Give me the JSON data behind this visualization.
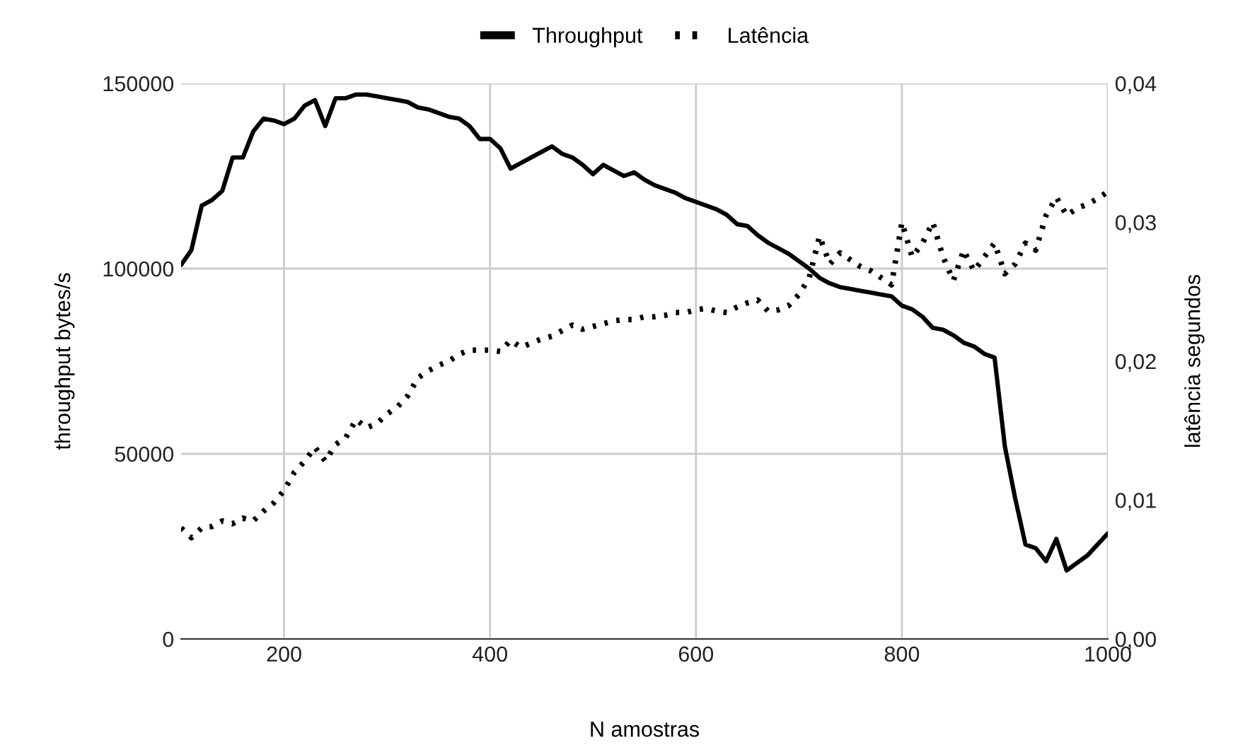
{
  "chart_data": {
    "type": "line",
    "xlabel": "N amostras",
    "ylabel": "throughput bytes/s",
    "y2label": "latência segundos",
    "x": [
      100,
      110,
      120,
      130,
      140,
      150,
      160,
      170,
      180,
      190,
      200,
      210,
      220,
      230,
      240,
      250,
      260,
      270,
      280,
      290,
      300,
      310,
      320,
      330,
      340,
      350,
      360,
      370,
      380,
      390,
      400,
      410,
      420,
      430,
      440,
      450,
      460,
      470,
      480,
      490,
      500,
      510,
      520,
      530,
      540,
      550,
      560,
      570,
      580,
      590,
      600,
      610,
      620,
      630,
      640,
      650,
      660,
      670,
      680,
      690,
      700,
      710,
      720,
      730,
      740,
      750,
      760,
      770,
      780,
      790,
      800,
      810,
      820,
      830,
      840,
      850,
      860,
      870,
      880,
      890,
      900,
      910,
      920,
      930,
      940,
      950,
      960,
      970,
      980,
      990,
      1000
    ],
    "series": [
      {
        "name": "Throughput",
        "color": "#000000",
        "line_style": "solid",
        "values": [
          101000,
          105000,
          117000,
          118500,
          121000,
          130000,
          130000,
          137000,
          140500,
          140000,
          139000,
          140500,
          144000,
          145500,
          138500,
          146000,
          146000,
          147000,
          147000,
          146500,
          146000,
          145500,
          145000,
          143500,
          143000,
          142000,
          141000,
          140500,
          138500,
          135000,
          135000,
          132500,
          127000,
          128500,
          130000,
          131500,
          133000,
          131000,
          130000,
          128000,
          125500,
          128000,
          126500,
          125000,
          126000,
          124000,
          122500,
          121500,
          120500,
          119000,
          118000,
          117000,
          116000,
          114500,
          112000,
          111500,
          109000,
          107000,
          105500,
          104000,
          102000,
          100000,
          97500,
          96000,
          95000,
          94500,
          94000,
          93500,
          93000,
          92500,
          90000,
          89000,
          87000,
          84000,
          83500,
          82000,
          80000,
          79000,
          77000,
          76000,
          52000,
          38000,
          25500,
          24500,
          21000,
          27000,
          18500,
          20500,
          22500,
          25500,
          28500
        ]
      },
      {
        "name": "Latência",
        "color": "#000000",
        "line_style": "dotted",
        "axis": "y2",
        "values": [
          0.008,
          0.0073,
          0.008,
          0.0081,
          0.0085,
          0.0083,
          0.0087,
          0.0085,
          0.0092,
          0.0098,
          0.0107,
          0.012,
          0.0128,
          0.0138,
          0.0128,
          0.014,
          0.0145,
          0.0158,
          0.0152,
          0.0155,
          0.0162,
          0.0167,
          0.0175,
          0.0188,
          0.0193,
          0.0197,
          0.02,
          0.0205,
          0.0208,
          0.0208,
          0.0208,
          0.0207,
          0.0215,
          0.021,
          0.0213,
          0.0216,
          0.0218,
          0.0222,
          0.0226,
          0.0223,
          0.0225,
          0.0227,
          0.0229,
          0.023,
          0.023,
          0.0232,
          0.0232,
          0.0233,
          0.0235,
          0.0235,
          0.0237,
          0.0238,
          0.0236,
          0.0235,
          0.0239,
          0.0242,
          0.0244,
          0.0236,
          0.0237,
          0.024,
          0.0248,
          0.026,
          0.029,
          0.027,
          0.0278,
          0.0273,
          0.0268,
          0.0265,
          0.026,
          0.0255,
          0.03,
          0.0275,
          0.0285,
          0.03,
          0.0275,
          0.0258,
          0.028,
          0.0265,
          0.0275,
          0.0285,
          0.0263,
          0.027,
          0.0285,
          0.028,
          0.0305,
          0.0318,
          0.0305,
          0.031,
          0.0313,
          0.0317,
          0.0322
        ]
      }
    ],
    "xlim": [
      100,
      1000
    ],
    "xticks": [
      200,
      400,
      600,
      800,
      1000
    ],
    "ylim": [
      0,
      150000
    ],
    "yticks": [
      0,
      50000,
      100000,
      150000
    ],
    "y2lim": [
      0,
      0.04
    ],
    "y2ticks": [
      {
        "value": 0,
        "label": "0,00"
      },
      {
        "value": 0.01,
        "label": "0,01"
      },
      {
        "value": 0.02,
        "label": "0,02"
      },
      {
        "value": 0.03,
        "label": "0,03"
      },
      {
        "value": 0.04,
        "label": "0,04"
      }
    ],
    "grid": true,
    "legend": "top"
  }
}
